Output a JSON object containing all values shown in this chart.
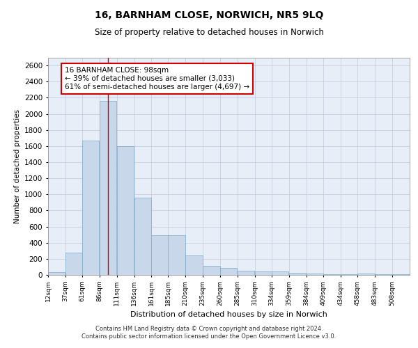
{
  "title": "16, BARNHAM CLOSE, NORWICH, NR5 9LQ",
  "subtitle": "Size of property relative to detached houses in Norwich",
  "xlabel": "Distribution of detached houses by size in Norwich",
  "ylabel": "Number of detached properties",
  "bar_color": "#c8d8ea",
  "bar_edge_color": "#7aaac8",
  "grid_color": "#c5cfe0",
  "background_color": "#e8eef8",
  "property_size": 98,
  "annotation_text": "16 BARNHAM CLOSE: 98sqm\n← 39% of detached houses are smaller (3,033)\n61% of semi-detached houses are larger (4,697) →",
  "bin_labels": [
    "12sqm",
    "37sqm",
    "61sqm",
    "86sqm",
    "111sqm",
    "136sqm",
    "161sqm",
    "185sqm",
    "210sqm",
    "235sqm",
    "260sqm",
    "285sqm",
    "310sqm",
    "334sqm",
    "359sqm",
    "384sqm",
    "409sqm",
    "434sqm",
    "458sqm",
    "483sqm",
    "508sqm"
  ],
  "bin_edges": [
    12,
    37,
    61,
    86,
    111,
    136,
    161,
    185,
    210,
    235,
    260,
    285,
    310,
    334,
    359,
    384,
    409,
    434,
    458,
    483,
    508
  ],
  "bar_heights": [
    35,
    280,
    1670,
    2160,
    1600,
    960,
    495,
    495,
    240,
    110,
    90,
    55,
    40,
    40,
    25,
    15,
    10,
    5,
    15,
    5,
    5
  ],
  "ylim": [
    0,
    2700
  ],
  "yticks": [
    0,
    200,
    400,
    600,
    800,
    1000,
    1200,
    1400,
    1600,
    1800,
    2000,
    2200,
    2400,
    2600
  ],
  "footer_line1": "Contains HM Land Registry data © Crown copyright and database right 2024.",
  "footer_line2": "Contains public sector information licensed under the Open Government Licence v3.0.",
  "red_line_color": "#cc0000",
  "annotation_box_color": "#ffffff",
  "annotation_box_edge": "#cc0000"
}
